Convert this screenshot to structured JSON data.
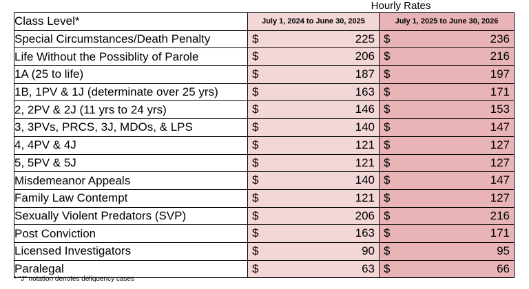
{
  "header": {
    "super_title": "Hourly Rates"
  },
  "table": {
    "label_header": "Class Level*",
    "col1_header": "July 1, 2024 to June 30, 2025",
    "col2_header": "July 1, 2025 to June 30, 2026",
    "currency": "$",
    "rows": [
      {
        "label": "Special Circumstances/Death Penalty",
        "v1": "225",
        "v2": "236"
      },
      {
        "label": "Life Without the Possiblity of Parole",
        "v1": "206",
        "v2": "216"
      },
      {
        "label": "1A (25 to life)",
        "v1": "187",
        "v2": "197"
      },
      {
        "label": "1B, 1PV & 1J (determinate over 25 yrs)",
        "v1": "163",
        "v2": "171"
      },
      {
        "label": "2, 2PV & 2J (11 yrs to 24 yrs)",
        "v1": "146",
        "v2": "153"
      },
      {
        "label": "3, 3PVs, PRCS, 3J, MDOs, & LPS",
        "v1": "140",
        "v2": "147"
      },
      {
        "label": "4, 4PV & 4J",
        "v1": "121",
        "v2": "127"
      },
      {
        "label": "5, 5PV & 5J",
        "v1": "121",
        "v2": "127"
      },
      {
        "label": "Misdemeanor Appeals",
        "v1": "140",
        "v2": "147"
      },
      {
        "label": "Family Law Contempt",
        "v1": "121",
        "v2": "127"
      },
      {
        "label": "Sexually Violent Predators (SVP)",
        "v1": "206",
        "v2": "216"
      },
      {
        "label": "Post Conviction",
        "v1": "163",
        "v2": "171"
      },
      {
        "label": "Licensed Investigators",
        "v1": "90",
        "v2": "95"
      },
      {
        "label": "Paralegal",
        "v1": "63",
        "v2": "66"
      }
    ]
  },
  "footnote": "* \"J\" notation  denotes deliquency cases",
  "colors": {
    "col1_bg": "#f3d6d6",
    "col2_bg": "#e9b4b6"
  }
}
